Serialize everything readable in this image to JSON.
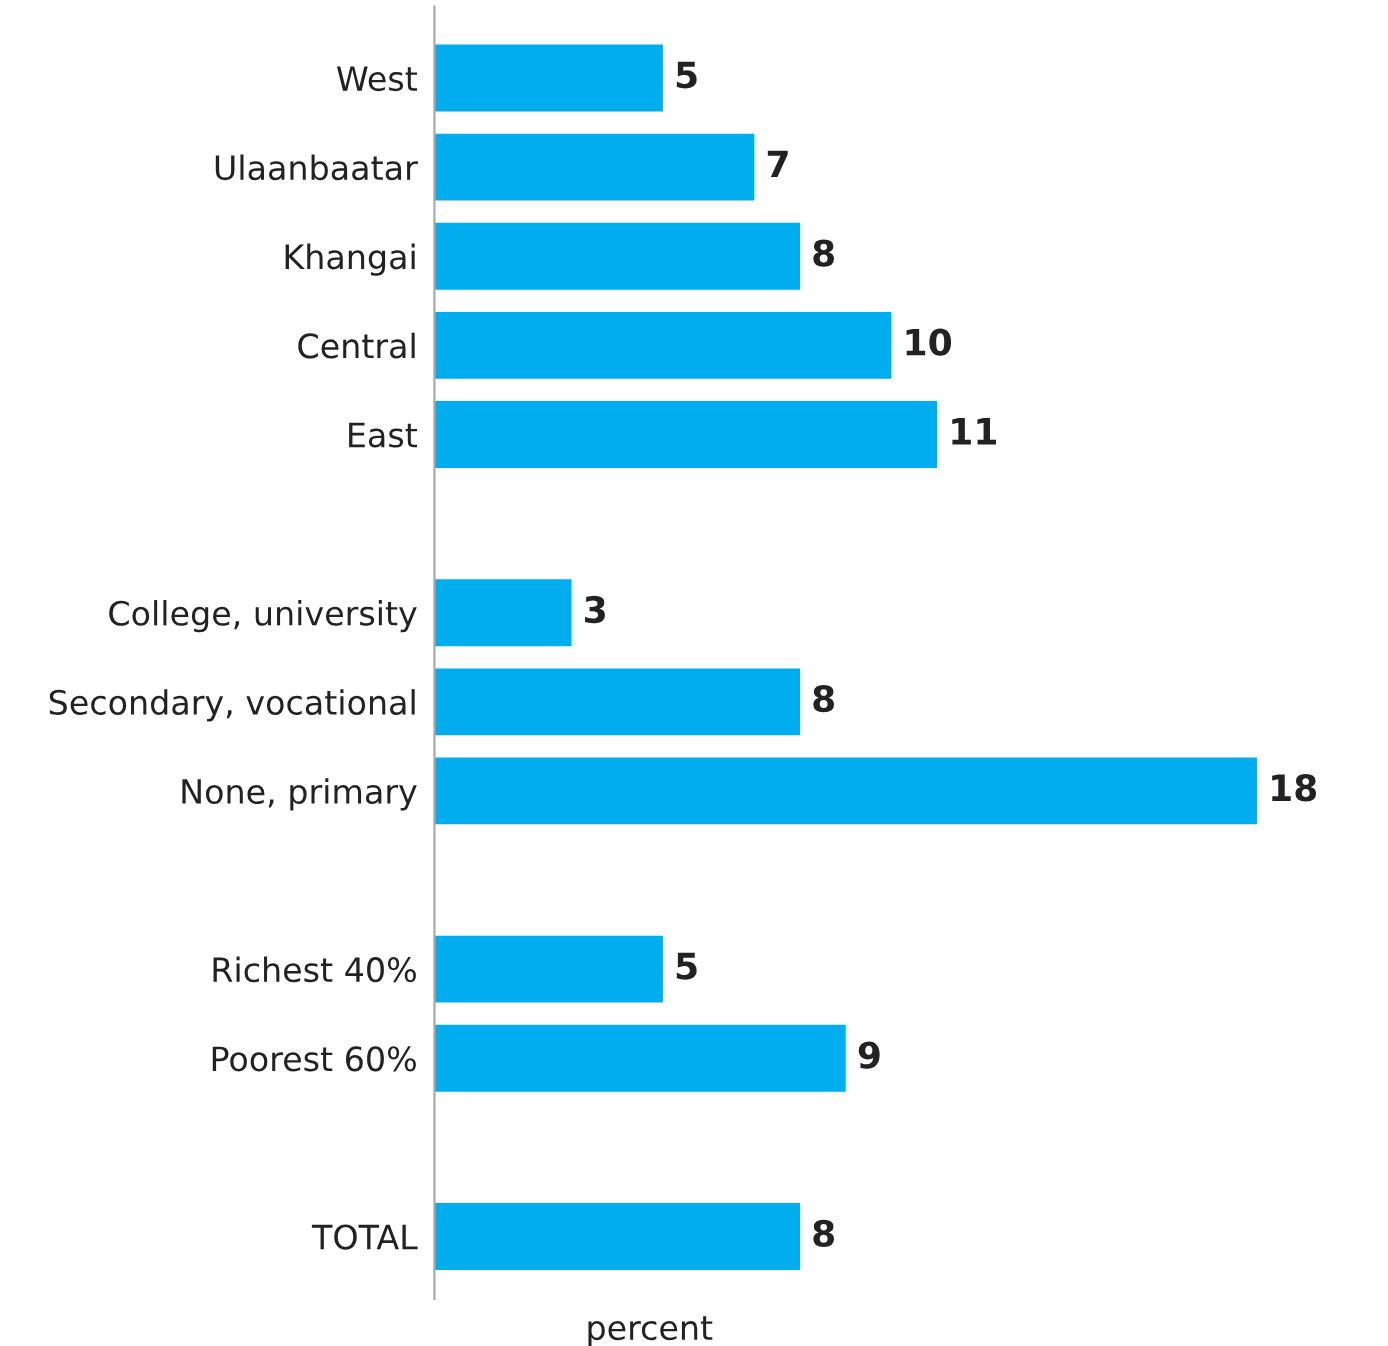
{
  "chart_data": {
    "type": "bar",
    "orientation": "horizontal",
    "xlabel": "percent",
    "categories": [
      "West",
      "Ulaanbaatar",
      "Khangai",
      "Central",
      "East",
      null,
      "College, university",
      "Secondary, vocational",
      "None, primary",
      null,
      "Richest 40%",
      "Poorest 60%",
      null,
      "TOTAL"
    ],
    "values": [
      5,
      7,
      8,
      10,
      11,
      null,
      3,
      8,
      18,
      null,
      5,
      9,
      null,
      8
    ],
    "color": "#00aeef",
    "data_labels": true,
    "grid": false,
    "legend": false
  }
}
